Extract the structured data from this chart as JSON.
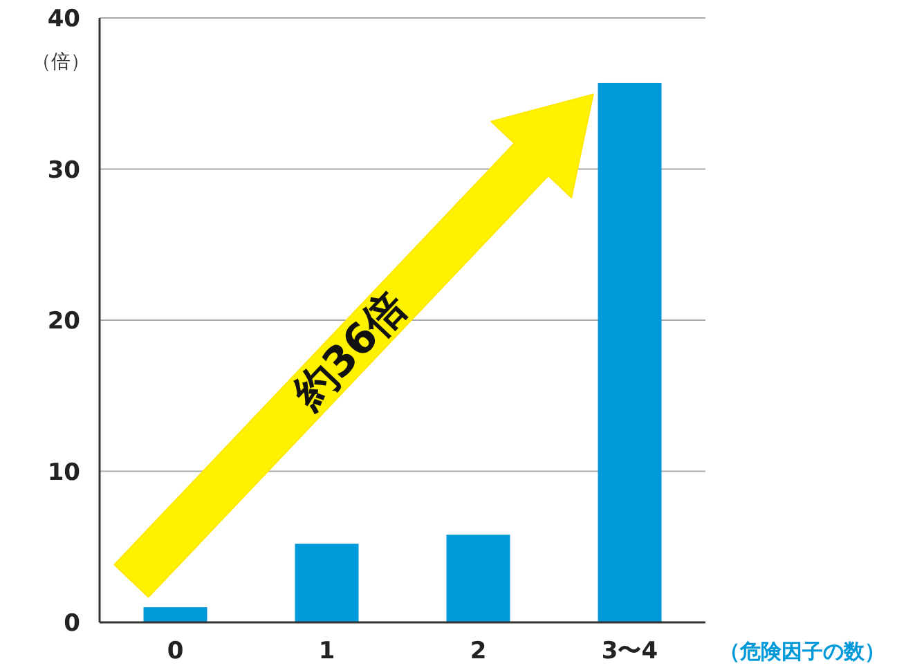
{
  "chart_data": {
    "type": "bar",
    "ylabel": "（倍）",
    "xlabel": "（危険因子の数）",
    "categories": [
      "0",
      "1",
      "2",
      "3〜4"
    ],
    "values": [
      1.0,
      5.2,
      5.8,
      35.7
    ],
    "color": "#0099d9",
    "ylim": [
      0,
      40
    ],
    "yticks": [
      0,
      10,
      20,
      30,
      40
    ],
    "grid": "y",
    "annotations": [
      "約36倍"
    ]
  }
}
